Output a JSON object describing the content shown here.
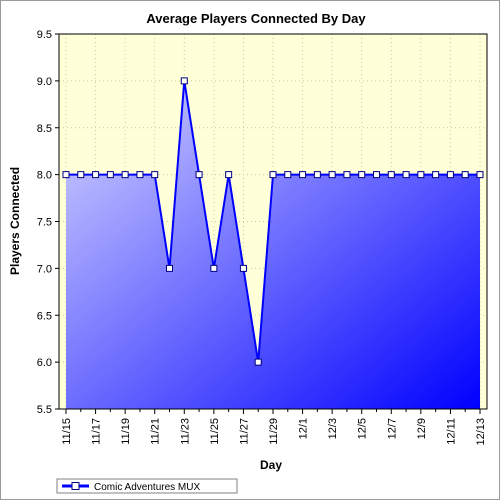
{
  "chart_data": {
    "type": "area",
    "title": "Average Players Connected By Day",
    "xlabel": "Day",
    "ylabel": "Players Connected",
    "ylim": [
      5.5,
      9.5
    ],
    "yticks": [
      "5.5",
      "6.0",
      "6.5",
      "7.0",
      "7.5",
      "8.0",
      "8.5",
      "9.0",
      "9.5"
    ],
    "categories": [
      "11/15",
      "11/16",
      "11/17",
      "11/18",
      "11/19",
      "11/20",
      "11/21",
      "11/22",
      "11/23",
      "11/24",
      "11/25",
      "11/26",
      "11/27",
      "11/28",
      "11/29",
      "11/30",
      "12/1",
      "12/2",
      "12/3",
      "12/4",
      "12/5",
      "12/6",
      "12/7",
      "12/8",
      "12/9",
      "12/10",
      "12/11",
      "12/12",
      "12/13"
    ],
    "xtick_labels": [
      "11/15",
      "11/17",
      "11/19",
      "11/21",
      "11/23",
      "11/25",
      "11/27",
      "11/29",
      "12/1",
      "12/3",
      "12/5",
      "12/7",
      "12/9",
      "12/11",
      "12/13"
    ],
    "series": [
      {
        "name": "Comic Adventures MUX",
        "values": [
          8,
          8,
          8,
          8,
          8,
          8,
          8,
          7,
          9,
          8,
          7,
          8,
          7,
          6,
          8,
          8,
          8,
          8,
          8,
          8,
          8,
          8,
          8,
          8,
          8,
          8,
          8,
          8,
          8
        ]
      }
    ],
    "grid": true,
    "legend_position": "bottom-left",
    "colors": {
      "plot_background": "#ffffd8",
      "area_top": "#d8d8ff",
      "area_bottom": "#0000ff",
      "line": "#0000ff",
      "marker_fill": "#ffffff",
      "marker_stroke": "#000080",
      "grid": "#c8c8a0"
    }
  }
}
